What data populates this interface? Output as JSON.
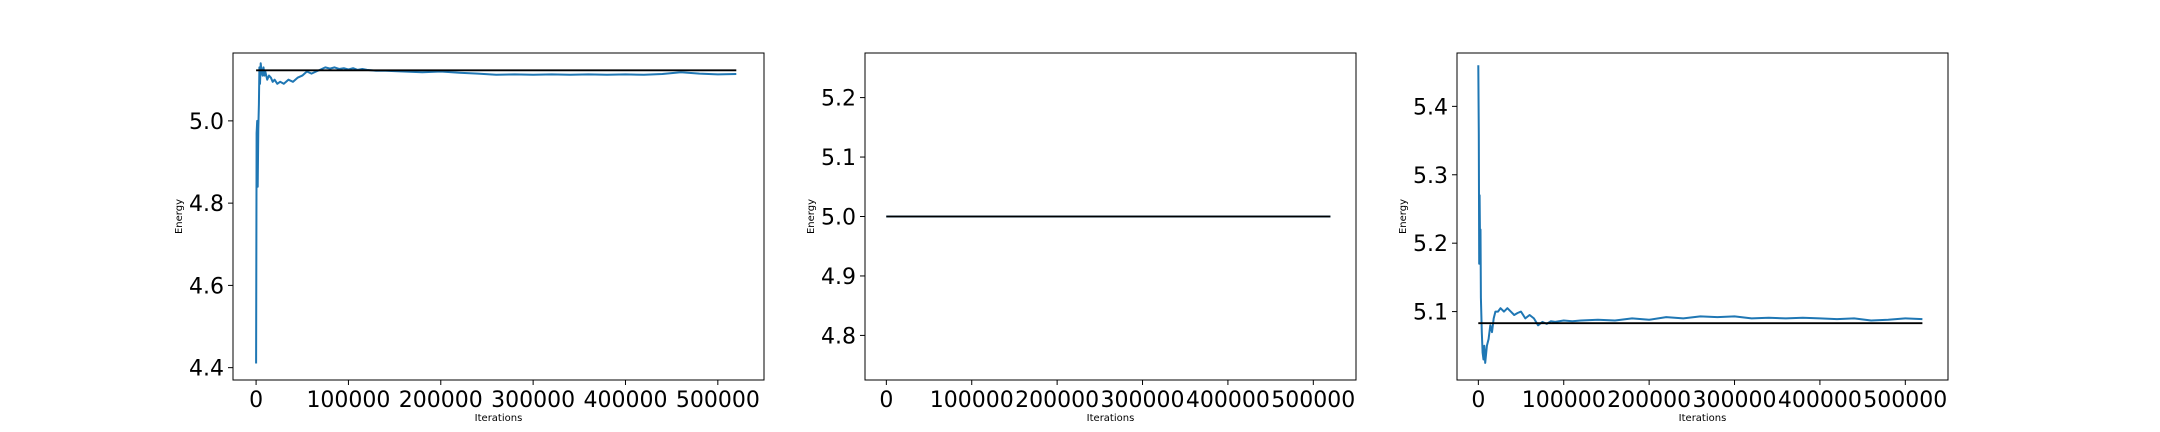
{
  "chart_data": [
    {
      "type": "line",
      "xlabel": "Iterations",
      "ylabel": "Energy",
      "xlim": [
        -25000,
        550000
      ],
      "ylim": [
        4.37,
        5.165
      ],
      "xticks": [
        0,
        100000,
        200000,
        300000,
        400000,
        500000
      ],
      "xtick_labels": [
        "0",
        "100000",
        "200000",
        "300000",
        "400000",
        "500000"
      ],
      "yticks": [
        4.4,
        4.6,
        4.8,
        5.0
      ],
      "ytick_labels": [
        "4.4",
        "4.6",
        "4.8",
        "5.0"
      ],
      "grid": false,
      "series": [
        {
          "color": "#1f77b4",
          "x": [
            0,
            600,
            1200,
            1800,
            2400,
            3000,
            3600,
            4200,
            5000,
            6000,
            7000,
            8000,
            9000,
            10000,
            12000,
            14000,
            16000,
            18000,
            20000,
            23000,
            26000,
            30000,
            35000,
            40000,
            45000,
            50000,
            55000,
            60000,
            65000,
            70000,
            75000,
            80000,
            85000,
            90000,
            95000,
            100000,
            105000,
            110000,
            115000,
            120000,
            130000,
            140000,
            160000,
            180000,
            200000,
            220000,
            240000,
            260000,
            280000,
            300000,
            320000,
            340000,
            360000,
            380000,
            400000,
            420000,
            440000,
            460000,
            480000,
            500000,
            520000
          ],
          "y": [
            4.41,
            4.97,
            5.0,
            4.84,
            4.98,
            5.04,
            5.13,
            5.09,
            5.14,
            5.12,
            5.11,
            5.13,
            5.11,
            5.12,
            5.1,
            5.11,
            5.105,
            5.095,
            5.1,
            5.09,
            5.095,
            5.09,
            5.1,
            5.095,
            5.105,
            5.11,
            5.12,
            5.115,
            5.12,
            5.125,
            5.13,
            5.127,
            5.13,
            5.126,
            5.128,
            5.125,
            5.128,
            5.124,
            5.126,
            5.124,
            5.122,
            5.122,
            5.12,
            5.118,
            5.12,
            5.117,
            5.115,
            5.112,
            5.113,
            5.112,
            5.113,
            5.112,
            5.113,
            5.112,
            5.113,
            5.112,
            5.114,
            5.118,
            5.115,
            5.113,
            5.114
          ]
        },
        {
          "color": "#000000",
          "x": [
            0,
            520000
          ],
          "y": [
            5.123,
            5.123
          ]
        }
      ]
    },
    {
      "type": "line",
      "xlabel": "Iterations",
      "ylabel": "Energy",
      "xlim": [
        -25000,
        550000
      ],
      "ylim": [
        4.725,
        5.275
      ],
      "xticks": [
        0,
        100000,
        200000,
        300000,
        400000,
        500000
      ],
      "xtick_labels": [
        "0",
        "100000",
        "200000",
        "300000",
        "400000",
        "500000"
      ],
      "yticks": [
        4.8,
        4.9,
        5.0,
        5.1,
        5.2
      ],
      "ytick_labels": [
        "4.8",
        "4.9",
        "5.0",
        "5.1",
        "5.2"
      ],
      "grid": false,
      "series": [
        {
          "color": "#1f77b4",
          "x": [
            0,
            520000
          ],
          "y": [
            5.0,
            5.0
          ]
        },
        {
          "color": "#000000",
          "x": [
            0,
            520000
          ],
          "y": [
            5.0,
            5.0
          ]
        }
      ]
    },
    {
      "type": "line",
      "xlabel": "Iterations",
      "ylabel": "Energy",
      "xlim": [
        -25000,
        550000
      ],
      "ylim": [
        5.0,
        5.478
      ],
      "xticks": [
        0,
        100000,
        200000,
        300000,
        400000,
        500000
      ],
      "xtick_labels": [
        "0",
        "100000",
        "200000",
        "300000",
        "400000",
        "500000"
      ],
      "yticks": [
        5.1,
        5.2,
        5.3,
        5.4
      ],
      "ytick_labels": [
        "5.1",
        "5.2",
        "5.3",
        "5.4"
      ],
      "grid": false,
      "series": [
        {
          "color": "#1f77b4",
          "x": [
            0,
            500,
            1000,
            1500,
            2000,
            2500,
            3000,
            4000,
            5000,
            6000,
            7000,
            8000,
            10000,
            12000,
            14000,
            16000,
            18000,
            20000,
            23000,
            26000,
            30000,
            34000,
            38000,
            42000,
            46000,
            50000,
            55000,
            60000,
            65000,
            70000,
            75000,
            80000,
            85000,
            90000,
            100000,
            110000,
            120000,
            140000,
            160000,
            180000,
            200000,
            220000,
            240000,
            260000,
            280000,
            300000,
            320000,
            340000,
            360000,
            380000,
            400000,
            420000,
            440000,
            460000,
            480000,
            500000,
            520000
          ],
          "y": [
            5.46,
            5.36,
            5.17,
            5.27,
            5.19,
            5.22,
            5.12,
            5.07,
            5.04,
            5.03,
            5.05,
            5.025,
            5.05,
            5.06,
            5.08,
            5.07,
            5.09,
            5.1,
            5.1,
            5.105,
            5.1,
            5.105,
            5.1,
            5.095,
            5.098,
            5.1,
            5.09,
            5.095,
            5.09,
            5.08,
            5.085,
            5.082,
            5.086,
            5.085,
            5.087,
            5.086,
            5.087,
            5.088,
            5.087,
            5.09,
            5.088,
            5.092,
            5.09,
            5.093,
            5.092,
            5.093,
            5.09,
            5.091,
            5.09,
            5.091,
            5.09,
            5.089,
            5.09,
            5.087,
            5.088,
            5.09,
            5.089
          ]
        },
        {
          "color": "#000000",
          "x": [
            0,
            520000
          ],
          "y": [
            5.083,
            5.083
          ]
        }
      ]
    }
  ]
}
